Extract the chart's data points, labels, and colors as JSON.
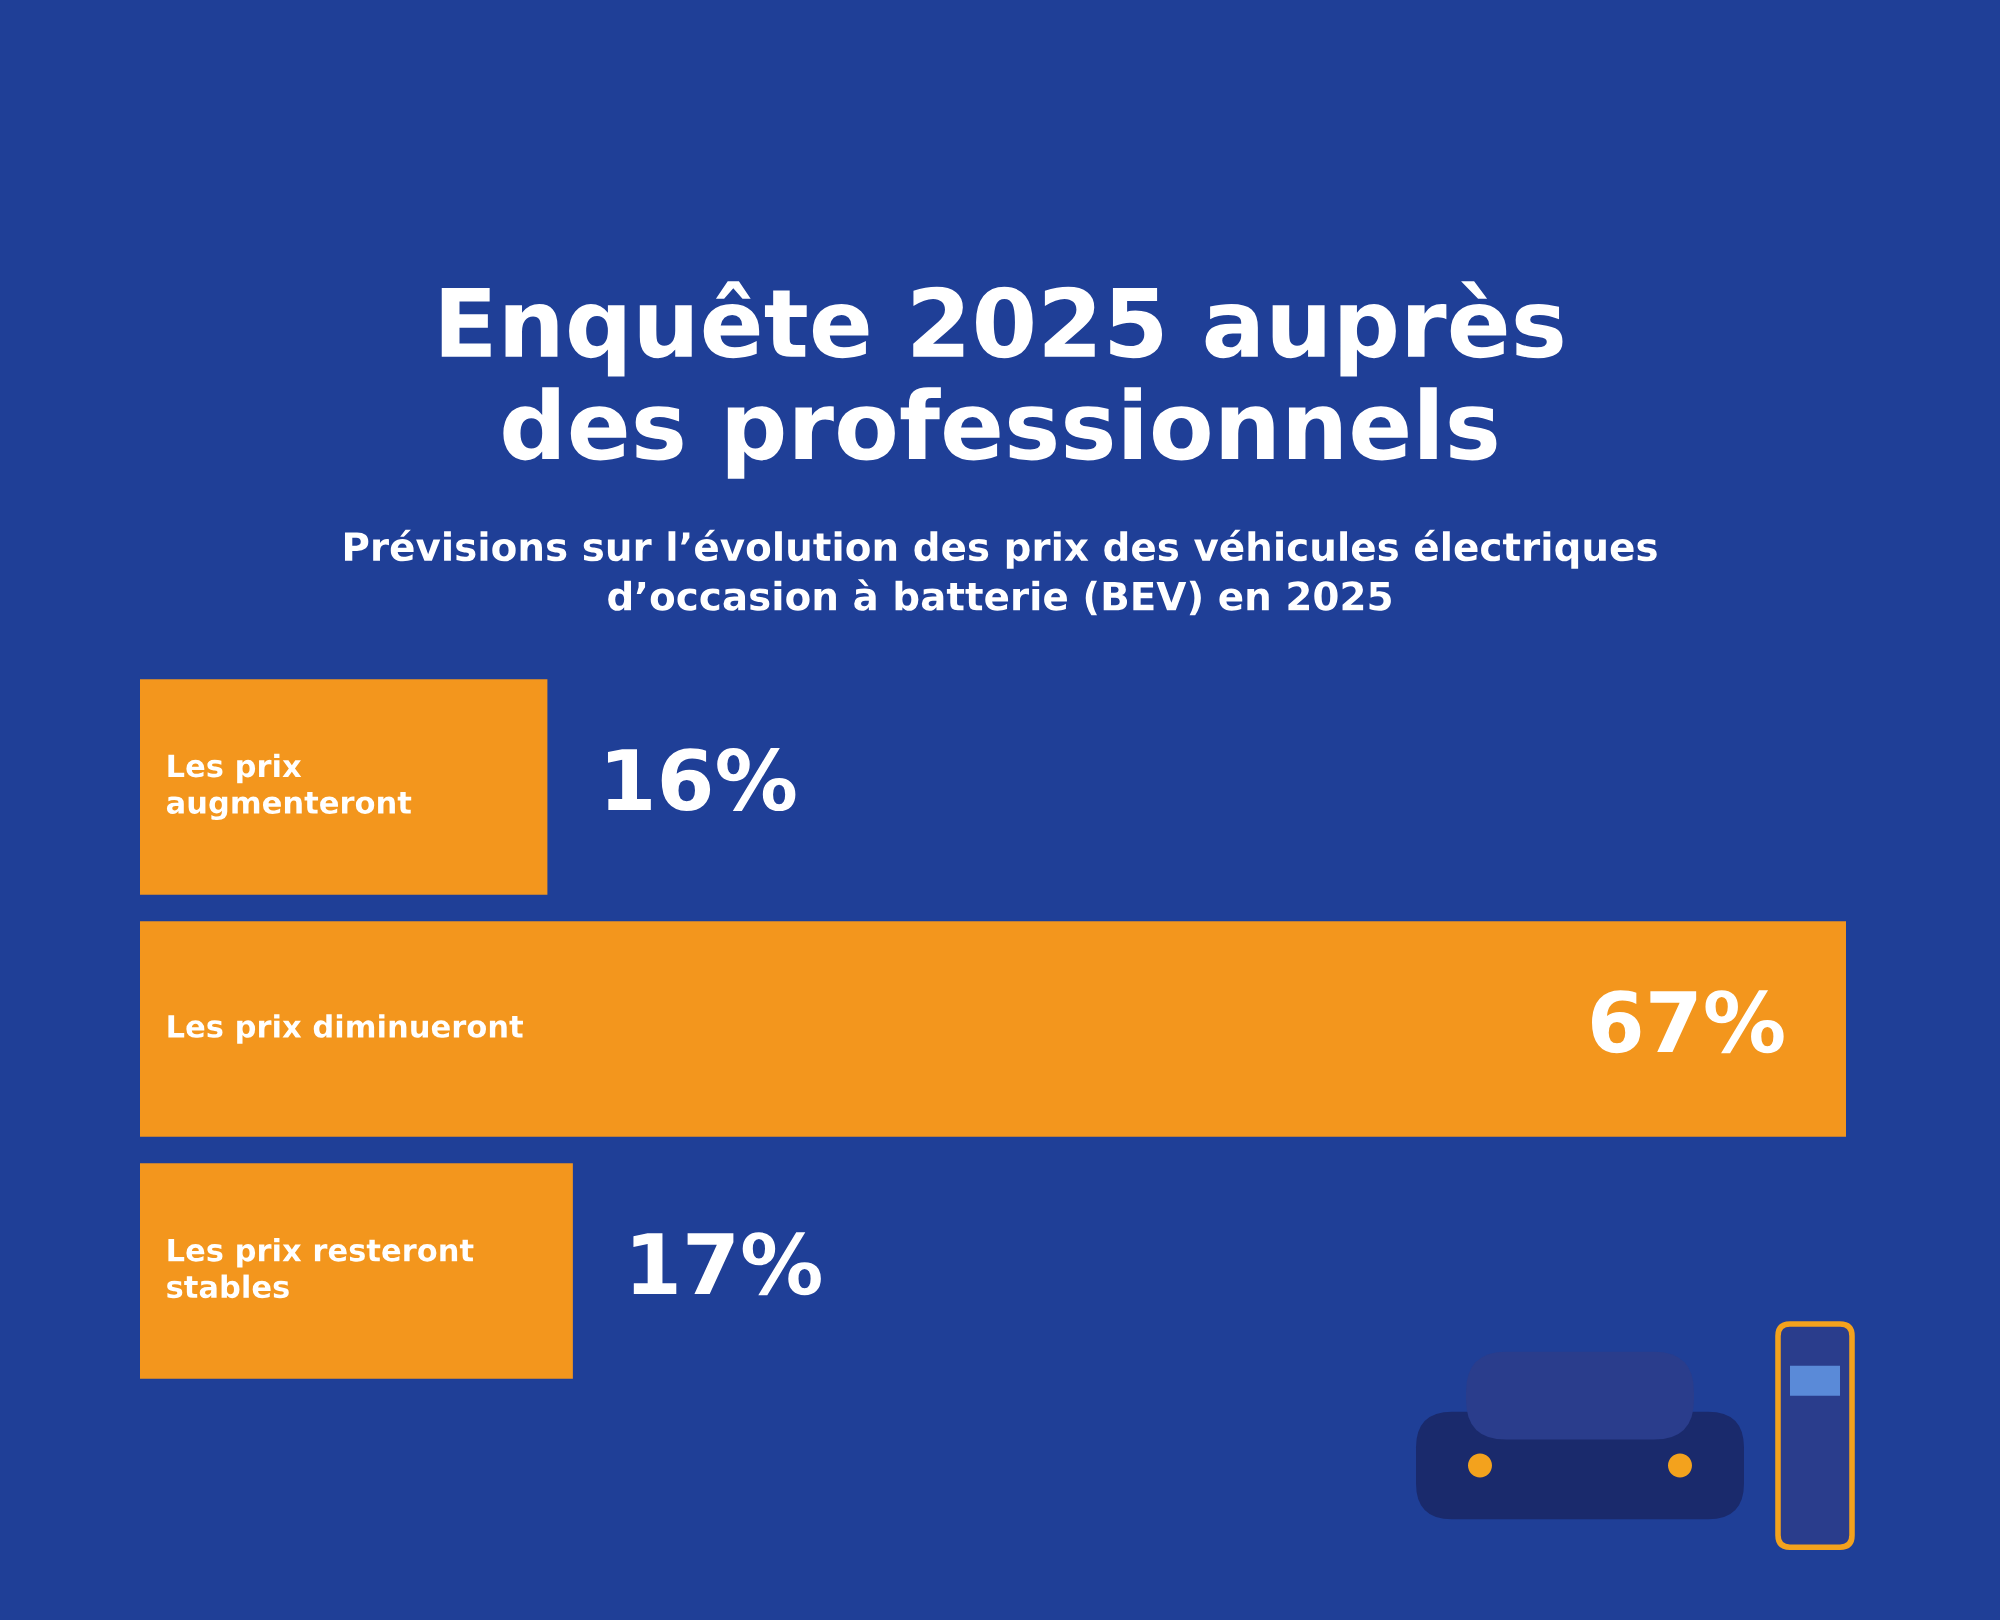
{
  "chart_data": {
    "type": "bar",
    "orientation": "horizontal",
    "title": "Enquête 2025 auprès\ndes professionnels",
    "subtitle": "Prévisions sur l’évolution des prix des véhicules électriques\nd’occasion à batterie (BEV) en 2025",
    "categories": [
      "Les prix\naugmenteront",
      "Les prix diminueront",
      "Les prix resteront\nstables"
    ],
    "values": [
      16,
      67,
      17
    ],
    "value_labels": [
      "16%",
      "67%",
      "17%"
    ],
    "color": "#f3961d"
  }
}
